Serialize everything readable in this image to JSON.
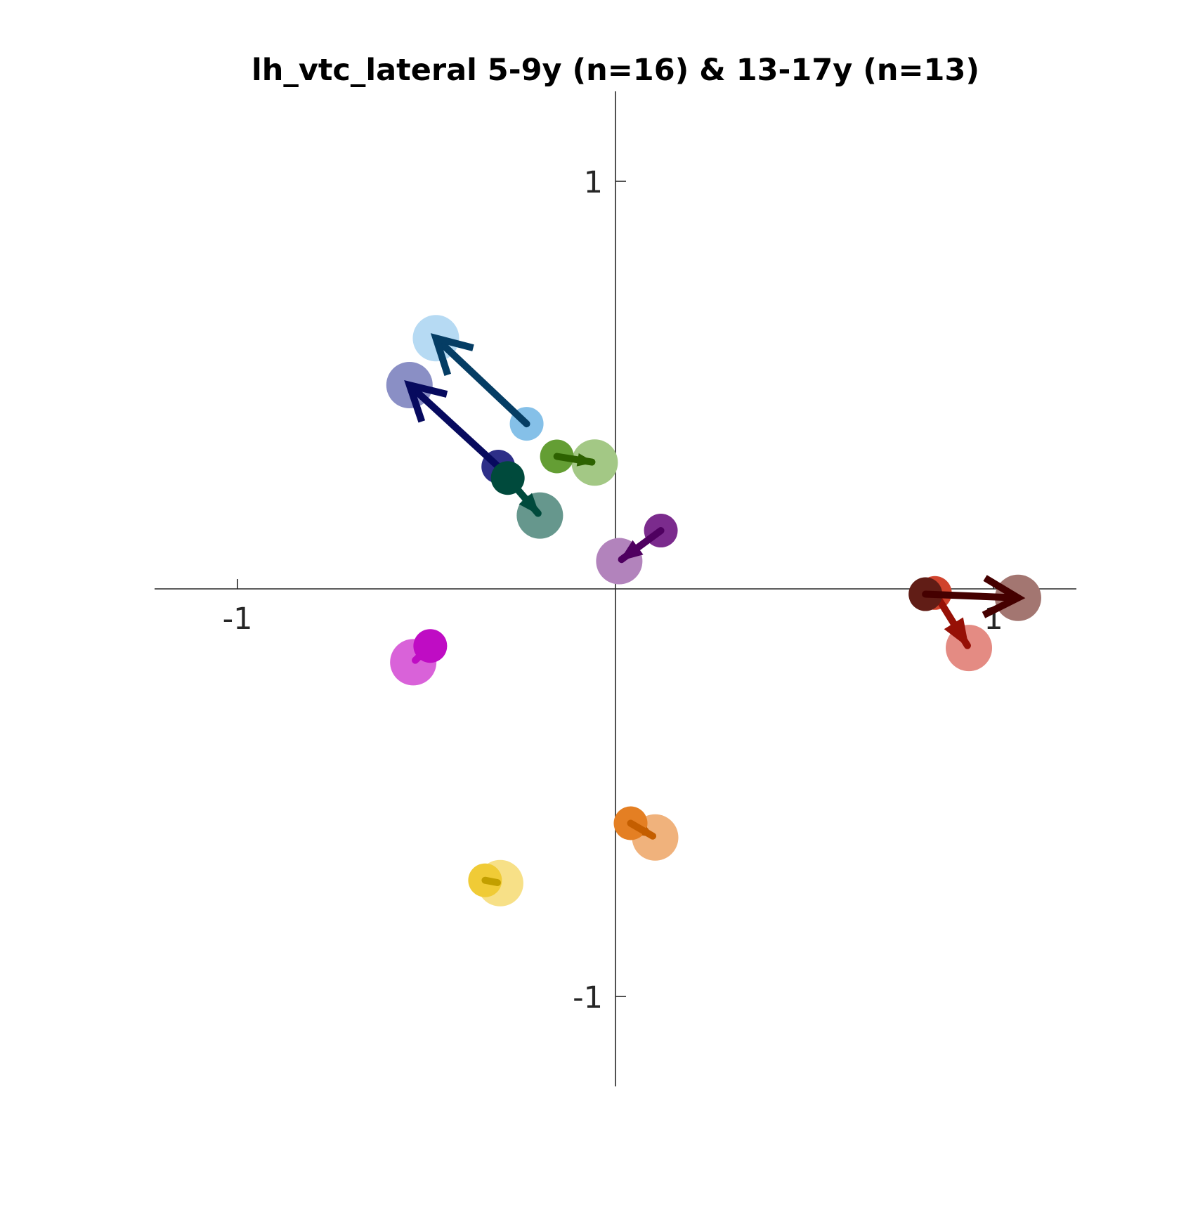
{
  "chart_data": {
    "type": "scatter",
    "title": "lh_vtc_lateral 5-9y (n=16) & 13-17y (n=13)",
    "xlabel": "",
    "ylabel": "",
    "xlim": [
      -1.22,
      1.22
    ],
    "ylim": [
      -1.22,
      1.22
    ],
    "xticks": [
      -1,
      1
    ],
    "yticks": [
      1,
      -1
    ],
    "xtick_labels": [
      "-1",
      "1"
    ],
    "ytick_labels": [
      "1",
      "-1"
    ],
    "grid": false,
    "legend": false,
    "series": [
      {
        "from": [
          -0.235,
          0.405
        ],
        "to": [
          -0.475,
          0.615
        ],
        "from_color": "#85c0e8",
        "to_color": "#b6daf3",
        "arrow_color": "#053d64"
      },
      {
        "from": [
          -0.31,
          0.3
        ],
        "to": [
          -0.545,
          0.5
        ],
        "from_color": "#2e2f88",
        "to_color": "#8a8fc5",
        "arrow_color": "#070a5e"
      },
      {
        "from": [
          -0.285,
          0.272
        ],
        "to": [
          -0.2,
          0.18
        ],
        "from_color": "#004a3c",
        "to_color": "#66978d",
        "arrow_color": "#004a3c"
      },
      {
        "from": [
          -0.155,
          0.325
        ],
        "to": [
          -0.055,
          0.31
        ],
        "from_color": "#649e34",
        "to_color": "#a3c885",
        "arrow_color": "#2d6200"
      },
      {
        "from": [
          0.12,
          0.143
        ],
        "to": [
          0.01,
          0.068
        ],
        "from_color": "#7b2b8d",
        "to_color": "#b283bc",
        "arrow_color": "#4f0060"
      },
      {
        "from": [
          -0.49,
          -0.14
        ],
        "to": [
          -0.535,
          -0.18
        ],
        "from_color": "#bf0cc4",
        "to_color": "#d962d9",
        "arrow_color": "#bf0cc4"
      },
      {
        "from": [
          0.04,
          -0.575
        ],
        "to": [
          0.105,
          -0.61
        ],
        "from_color": "#e47f23",
        "to_color": "#f0b27c",
        "arrow_color": "#c45e00"
      },
      {
        "from": [
          -0.345,
          -0.715
        ],
        "to": [
          -0.305,
          -0.722
        ],
        "from_color": "#f0cb36",
        "to_color": "#f7e087",
        "arrow_color": "#c29f00"
      },
      {
        "from": [
          0.845,
          -0.01
        ],
        "to": [
          0.935,
          -0.145
        ],
        "from_color": "#d0432d",
        "to_color": "#e48b83",
        "arrow_color": "#961006"
      },
      {
        "from": [
          0.82,
          -0.013
        ],
        "to": [
          1.065,
          -0.022
        ],
        "from_color": "#611d16",
        "to_color": "#a37671",
        "arrow_color": "#450000"
      }
    ]
  }
}
